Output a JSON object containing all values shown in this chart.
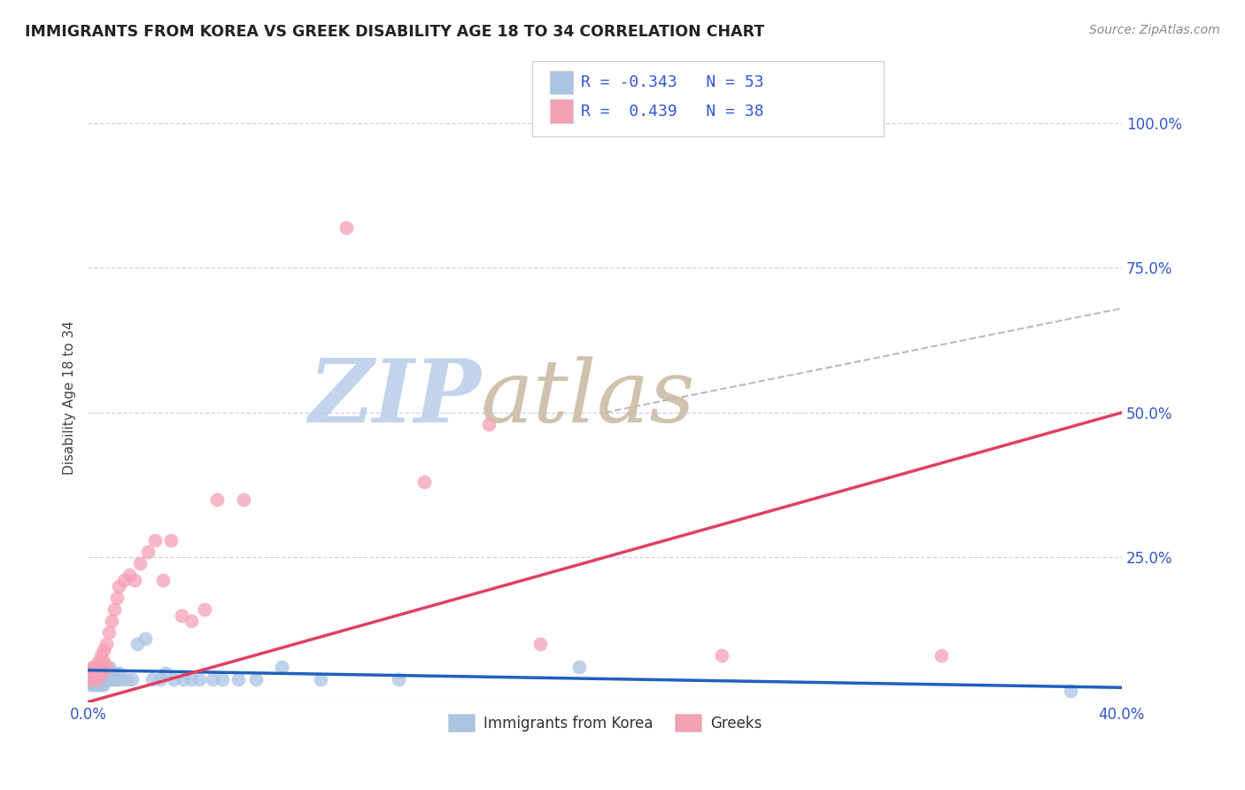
{
  "title": "IMMIGRANTS FROM KOREA VS GREEK DISABILITY AGE 18 TO 34 CORRELATION CHART",
  "source": "Source: ZipAtlas.com",
  "ylabel": "Disability Age 18 to 34",
  "xlim": [
    0.0,
    0.4
  ],
  "ylim": [
    0.0,
    1.05
  ],
  "korea_R": -0.343,
  "korea_N": 53,
  "greek_R": 0.439,
  "greek_N": 38,
  "korea_color": "#aac4e2",
  "greek_color": "#f5a0b5",
  "korea_line_color": "#2060c0",
  "greek_line_color": "#e04060",
  "dash_line_color": "#bbbbbb",
  "legend_text_color": "#3355dd",
  "watermark_zip_color": "#b8cce8",
  "watermark_atlas_color": "#c8b8a0",
  "background_color": "#ffffff",
  "grid_color": "#c8d4e8",
  "korea_x": [
    0.001,
    0.001,
    0.001,
    0.002,
    0.002,
    0.002,
    0.002,
    0.003,
    0.003,
    0.003,
    0.003,
    0.003,
    0.004,
    0.004,
    0.004,
    0.004,
    0.005,
    0.005,
    0.005,
    0.005,
    0.006,
    0.006,
    0.006,
    0.007,
    0.007,
    0.008,
    0.008,
    0.009,
    0.01,
    0.01,
    0.011,
    0.012,
    0.013,
    0.015,
    0.017,
    0.019,
    0.022,
    0.025,
    0.028,
    0.03,
    0.033,
    0.037,
    0.04,
    0.043,
    0.048,
    0.052,
    0.058,
    0.065,
    0.075,
    0.09,
    0.12,
    0.19,
    0.38
  ],
  "korea_y": [
    0.04,
    0.03,
    0.05,
    0.04,
    0.05,
    0.06,
    0.03,
    0.04,
    0.05,
    0.03,
    0.06,
    0.04,
    0.05,
    0.04,
    0.06,
    0.03,
    0.04,
    0.05,
    0.03,
    0.06,
    0.04,
    0.05,
    0.03,
    0.04,
    0.05,
    0.04,
    0.06,
    0.04,
    0.05,
    0.04,
    0.04,
    0.05,
    0.04,
    0.04,
    0.04,
    0.1,
    0.11,
    0.04,
    0.04,
    0.05,
    0.04,
    0.04,
    0.04,
    0.04,
    0.04,
    0.04,
    0.04,
    0.04,
    0.06,
    0.04,
    0.04,
    0.06,
    0.02
  ],
  "greek_x": [
    0.001,
    0.001,
    0.002,
    0.002,
    0.003,
    0.003,
    0.004,
    0.004,
    0.005,
    0.005,
    0.006,
    0.006,
    0.007,
    0.007,
    0.008,
    0.009,
    0.01,
    0.011,
    0.012,
    0.014,
    0.016,
    0.018,
    0.02,
    0.023,
    0.026,
    0.029,
    0.032,
    0.036,
    0.04,
    0.045,
    0.05,
    0.06,
    0.1,
    0.13,
    0.155,
    0.175,
    0.245,
    0.33
  ],
  "greek_y": [
    0.04,
    0.05,
    0.04,
    0.06,
    0.05,
    0.06,
    0.04,
    0.07,
    0.05,
    0.08,
    0.07,
    0.09,
    0.06,
    0.1,
    0.12,
    0.14,
    0.16,
    0.18,
    0.2,
    0.21,
    0.22,
    0.21,
    0.24,
    0.26,
    0.28,
    0.21,
    0.28,
    0.15,
    0.14,
    0.16,
    0.35,
    0.35,
    0.82,
    0.38,
    0.48,
    0.1,
    0.08,
    0.08
  ],
  "korea_trend_x": [
    0.0,
    0.4
  ],
  "korea_trend_y": [
    0.055,
    0.025
  ],
  "greek_trend_x": [
    0.0,
    0.4
  ],
  "greek_trend_y": [
    0.0,
    0.5
  ],
  "dash_trend_x": [
    0.2,
    0.4
  ],
  "dash_trend_y": [
    0.5,
    0.68
  ]
}
